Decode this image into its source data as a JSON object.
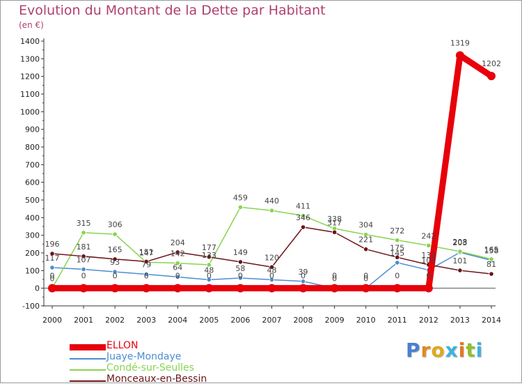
{
  "title": "Evolution du Montant de la Dette par Habitant",
  "unit": "(en €)",
  "logo": {
    "text": "Proxiti",
    "letters": [
      "P",
      "r",
      "o",
      "x",
      "i",
      "t",
      "i"
    ],
    "colors": [
      "#4a7fd0",
      "#e08a1e",
      "#e0a81e",
      "#3fb0e0",
      "#e07a1e",
      "#8fbf2f",
      "#3fb0e0"
    ]
  },
  "chart_data": {
    "type": "line",
    "x": [
      "2000",
      "2001",
      "2002",
      "2003",
      "2004",
      "2005",
      "2006",
      "2007",
      "2008",
      "2009",
      "2010",
      "2011",
      "2012",
      "2013",
      "2014"
    ],
    "ylim": [
      -100,
      1400
    ],
    "yticks": [
      -100,
      0,
      100,
      200,
      300,
      400,
      500,
      600,
      700,
      800,
      900,
      1000,
      1100,
      1200,
      1300,
      1400
    ],
    "grid": false,
    "legend_position": "bottom-left",
    "series": [
      {
        "name": "ELLON",
        "color": "#e8000b",
        "emphasis": true,
        "values": [
          0,
          0,
          0,
          0,
          0,
          0,
          0,
          0,
          0,
          0,
          0,
          0,
          0,
          1319,
          1202
        ],
        "labels": [
          "0",
          "0",
          "0",
          "0",
          "0",
          "0",
          "0",
          "0",
          "0",
          "0",
          "0",
          "0",
          "0",
          "1319",
          "1202"
        ]
      },
      {
        "name": "Juaye-Mondaye",
        "color": "#4d8dcf",
        "values": [
          117,
          107,
          93,
          79,
          64,
          48,
          58,
          48,
          39,
          0,
          0,
          145,
          103,
          203,
          158
        ],
        "labels": [
          "117",
          "107",
          "93",
          "79",
          "64",
          "48",
          "58",
          "48",
          "39",
          "0",
          "0",
          "145",
          "103",
          "203",
          "158"
        ]
      },
      {
        "name": "Condé-sur-Seulles",
        "color": "#88d44f",
        "values": [
          0,
          315,
          306,
          147,
          142,
          133,
          459,
          440,
          411,
          338,
          304,
          272,
          242,
          208,
          165
        ],
        "labels": [
          "0",
          "315",
          "306",
          "147",
          "142",
          "133",
          "459",
          "440",
          "411",
          "338",
          "304",
          "272",
          "242",
          "208",
          "165"
        ]
      },
      {
        "name": "Monceaux-en-Bessin",
        "color": "#6b1418",
        "values": [
          196,
          181,
          165,
          151,
          204,
          177,
          149,
          120,
          346,
          317,
          221,
          175,
          133,
          101,
          81
        ],
        "labels": [
          "196",
          "181",
          "165",
          "151",
          "204",
          "177",
          "149",
          "120",
          "346",
          "317",
          "221",
          "175",
          "133",
          "101",
          "81"
        ]
      }
    ]
  }
}
